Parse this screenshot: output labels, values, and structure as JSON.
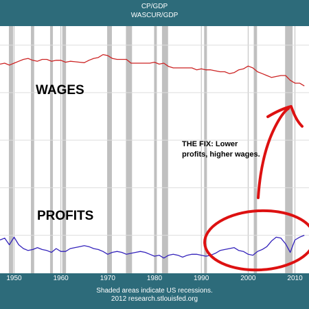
{
  "header": {
    "series_1": "CP/GDP",
    "series_2": "WASCUR/GDP"
  },
  "footer": {
    "recession_note": "Shaded areas indicate US recessions.",
    "source": "2012 research.stlouisfed.org"
  },
  "annotations": {
    "wages": "WAGES",
    "profits": "PROFITS",
    "fix_line1": "THE FIX: Lower",
    "fix_line2": "profits, higher wages."
  },
  "colors": {
    "background": "#2d6b7a",
    "wages": "#cc2222",
    "profits": "#3322bb",
    "recession": "#c0c0c0",
    "highlight": "#dd1111"
  },
  "chart_data": {
    "type": "line",
    "xlim": [
      1947,
      2013
    ],
    "x_ticks": [
      "1950",
      "1960",
      "1970",
      "1980",
      "1990",
      "2000",
      "2010"
    ],
    "grid": true,
    "recessions": [
      [
        1948.9,
        1949.8
      ],
      [
        1953.6,
        1954.3
      ],
      [
        1957.7,
        1958.3
      ],
      [
        1960.3,
        1961.1
      ],
      [
        1969.9,
        1970.9
      ],
      [
        1973.9,
        1975.2
      ],
      [
        1980.0,
        1980.5
      ],
      [
        1981.6,
        1982.9
      ],
      [
        1990.6,
        1991.2
      ],
      [
        2001.2,
        2001.9
      ],
      [
        2007.9,
        2009.5
      ]
    ],
    "series": [
      {
        "name": "WAGES",
        "x": [
          1947,
          1948,
          1949,
          1950,
          1951,
          1952,
          1953,
          1954,
          1955,
          1956,
          1957,
          1958,
          1959,
          1960,
          1961,
          1962,
          1963,
          1964,
          1965,
          1966,
          1967,
          1968,
          1969,
          1970,
          1971,
          1972,
          1973,
          1974,
          1975,
          1976,
          1977,
          1978,
          1979,
          1980,
          1981,
          1982,
          1983,
          1984,
          1985,
          1986,
          1987,
          1988,
          1989,
          1990,
          1991,
          1992,
          1993,
          1994,
          1995,
          1996,
          1997,
          1998,
          1999,
          2000,
          2001,
          2002,
          2003,
          2004,
          2005,
          2006,
          2007,
          2008,
          2009,
          2010,
          2011,
          2012
        ],
        "values": [
          0.46,
          0.462,
          0.458,
          0.462,
          0.466,
          0.47,
          0.472,
          0.468,
          0.466,
          0.47,
          0.47,
          0.466,
          0.468,
          0.468,
          0.464,
          0.466,
          0.465,
          0.464,
          0.463,
          0.468,
          0.472,
          0.474,
          0.48,
          0.478,
          0.472,
          0.47,
          0.47,
          0.47,
          0.462,
          0.462,
          0.462,
          0.462,
          0.462,
          0.464,
          0.46,
          0.462,
          0.455,
          0.452,
          0.452,
          0.452,
          0.452,
          0.452,
          0.448,
          0.45,
          0.448,
          0.448,
          0.446,
          0.444,
          0.444,
          0.44,
          0.442,
          0.448,
          0.45,
          0.456,
          0.452,
          0.444,
          0.44,
          0.436,
          0.432,
          0.434,
          0.436,
          0.436,
          0.426,
          0.42,
          0.42,
          0.414
        ]
      },
      {
        "name": "PROFITS",
        "x": [
          1947,
          1948,
          1949,
          1950,
          1951,
          1952,
          1953,
          1954,
          1955,
          1956,
          1957,
          1958,
          1959,
          1960,
          1961,
          1962,
          1963,
          1964,
          1965,
          1966,
          1967,
          1968,
          1969,
          1970,
          1971,
          1972,
          1973,
          1974,
          1975,
          1976,
          1977,
          1978,
          1979,
          1980,
          1981,
          1982,
          1983,
          1984,
          1985,
          1986,
          1987,
          1988,
          1989,
          1990,
          1991,
          1992,
          1993,
          1994,
          1995,
          1996,
          1997,
          1998,
          1999,
          2000,
          2001,
          2002,
          2003,
          2004,
          2005,
          2006,
          2007,
          2008,
          2009,
          2010,
          2011,
          2012
        ],
        "values": [
          0.09,
          0.094,
          0.08,
          0.096,
          0.08,
          0.072,
          0.068,
          0.07,
          0.074,
          0.07,
          0.068,
          0.064,
          0.072,
          0.066,
          0.066,
          0.072,
          0.074,
          0.076,
          0.078,
          0.076,
          0.072,
          0.07,
          0.066,
          0.06,
          0.064,
          0.066,
          0.064,
          0.06,
          0.062,
          0.064,
          0.066,
          0.064,
          0.06,
          0.056,
          0.058,
          0.052,
          0.058,
          0.06,
          0.058,
          0.054,
          0.058,
          0.06,
          0.06,
          0.058,
          0.056,
          0.058,
          0.062,
          0.068,
          0.07,
          0.072,
          0.074,
          0.068,
          0.066,
          0.06,
          0.058,
          0.066,
          0.07,
          0.076,
          0.088,
          0.096,
          0.094,
          0.082,
          0.064,
          0.09,
          0.096,
          0.1
        ]
      }
    ],
    "ylim": [
      0.02,
      0.54
    ]
  }
}
